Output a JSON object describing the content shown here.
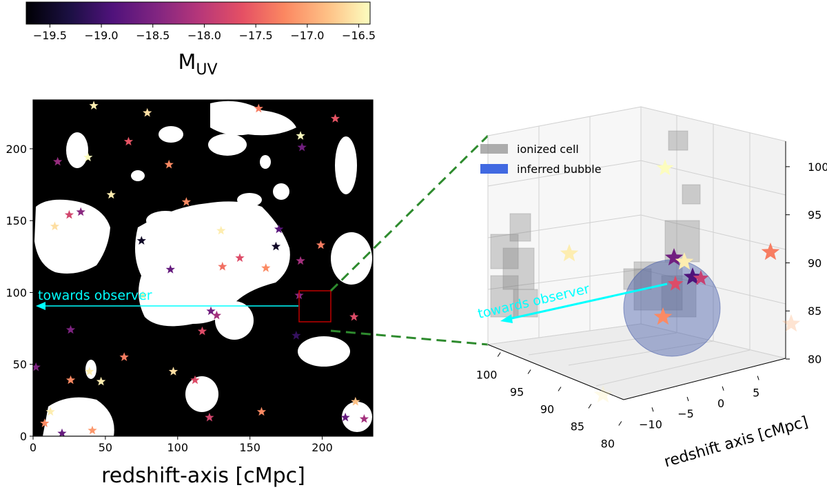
{
  "chart_data": [
    {
      "type": "colorbar",
      "label": "M",
      "label_sub": "UV",
      "colormap": "magma",
      "xlim": [
        -19.73,
        -16.39
      ],
      "xticks": [
        {
          "value": -19.5,
          "label": "−19.5"
        },
        {
          "value": -19,
          "label": "−19.0"
        },
        {
          "value": -18.5,
          "label": "−18.5"
        },
        {
          "value": -18,
          "label": "−18.0"
        },
        {
          "value": -17.5,
          "label": "−17.5"
        },
        {
          "value": -17,
          "label": "−17.0"
        },
        {
          "value": -16.5,
          "label": "−16.5"
        }
      ]
    },
    {
      "type": "scatter",
      "xlabel": "redshift-axis [cMpc]",
      "annotation": "towards observer",
      "xlim": [
        0,
        235
      ],
      "ylim": [
        0,
        234
      ],
      "xticks": [
        0,
        50,
        100,
        150,
        200
      ],
      "yticks": [
        0,
        50,
        100,
        150,
        200
      ],
      "x": [
        42,
        79,
        156,
        209,
        17,
        38,
        66,
        94,
        186,
        185,
        54,
        25,
        15,
        33,
        75,
        95,
        106,
        130,
        170,
        168,
        199,
        185,
        143,
        161,
        131,
        184,
        76,
        123,
        127,
        117,
        26,
        182,
        222,
        63,
        39,
        97,
        112,
        26,
        47,
        158,
        122,
        216,
        229,
        223,
        12,
        8,
        20,
        41,
        2
      ],
      "y": [
        230,
        225,
        228,
        221,
        191,
        194,
        205,
        189,
        201,
        209,
        168,
        154,
        146,
        156,
        136,
        116,
        163,
        143,
        144,
        132,
        133,
        122,
        124,
        117,
        118,
        98,
        98,
        87,
        84,
        73,
        74,
        70,
        83,
        55,
        45,
        45,
        39,
        39,
        38,
        17,
        13,
        13,
        12,
        24,
        17,
        9,
        2,
        4,
        48
      ],
      "c": [
        -16.5,
        -16.6,
        -17.3,
        -17.6,
        -18.3,
        -16.4,
        -17.6,
        -17.2,
        -18.6,
        -16.4,
        -16.5,
        -17.8,
        -16.6,
        -18.4,
        -19.5,
        -18.7,
        -17.2,
        -16.5,
        -18.8,
        -19.5,
        -17.3,
        -18.2,
        -17.7,
        -17.2,
        -17.4,
        -18.4,
        -16.5,
        -18.6,
        -18.2,
        -17.7,
        -18.5,
        -19.1,
        -17.7,
        -17.3,
        -16.5,
        -16.6,
        -17.7,
        -17.2,
        -16.5,
        -17.2,
        -17.8,
        -18.7,
        -18.2,
        -16.8,
        -16.5,
        -17.2,
        -18.7,
        -17.1,
        -18.5
      ]
    },
    {
      "type": "scatter3d",
      "xlabel": "redshift axis [cMpc]",
      "annotation": "towards observer",
      "xlim": [
        -12,
        8
      ],
      "xticks": [
        {
          "value": -10,
          "label": "−10"
        },
        {
          "value": -5,
          "label": "−5"
        },
        0,
        5
      ],
      "ylim": [
        78.5,
        101.5
      ],
      "yticks": [
        80,
        85,
        90,
        95,
        100
      ],
      "zlim": [
        79.5,
        102.5
      ],
      "zticks": [
        80,
        85,
        90,
        95,
        100
      ],
      "legend": [
        {
          "name": "ionized cell",
          "color": "#8c8c8c"
        },
        {
          "name": "inferred bubble",
          "color": "#4169e1"
        }
      ],
      "c": [
        -16.4,
        -16.5,
        -17.3,
        -18.6,
        -16.5,
        -18.9,
        -17.9,
        -17.7,
        -17.2,
        -16.9,
        -16.5
      ]
    }
  ]
}
